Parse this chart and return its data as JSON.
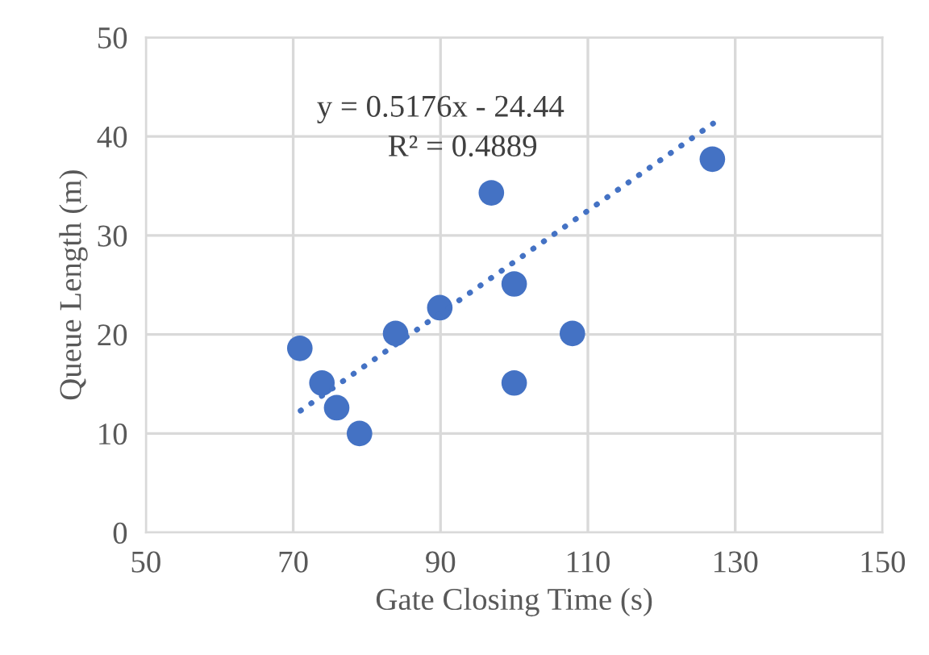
{
  "chart_data": {
    "type": "scatter",
    "xlabel": "Gate Closing Time (s)",
    "ylabel": "Queue Length (m)",
    "series": [
      {
        "color": "#4472c4",
        "marker": "circle",
        "x": [
          70.9,
          73.9,
          75.9,
          79,
          83.9,
          89.9,
          96.9,
          100,
          100,
          107.9,
          126.9
        ],
        "values": [
          18.6,
          15.1,
          12.6,
          10.0,
          20.1,
          22.7,
          34.3,
          25.1,
          15.1,
          20.1,
          37.7
        ]
      },
      {
        "type": "line",
        "color": "#4472c4",
        "line_style": "dotted",
        "x": [
          71,
          127
        ],
        "values": [
          12.3,
          41.3
        ]
      }
    ],
    "annotations": [
      "y = 0.5176x - 24.44",
      "R² = 0.4889"
    ],
    "xlim": [
      50,
      150
    ],
    "xticks": [
      50,
      70,
      90,
      110,
      130,
      150
    ],
    "ylim": [
      0,
      50
    ],
    "yticks": [
      0,
      10,
      20,
      30,
      40,
      50
    ],
    "grid": true,
    "legend": false
  }
}
